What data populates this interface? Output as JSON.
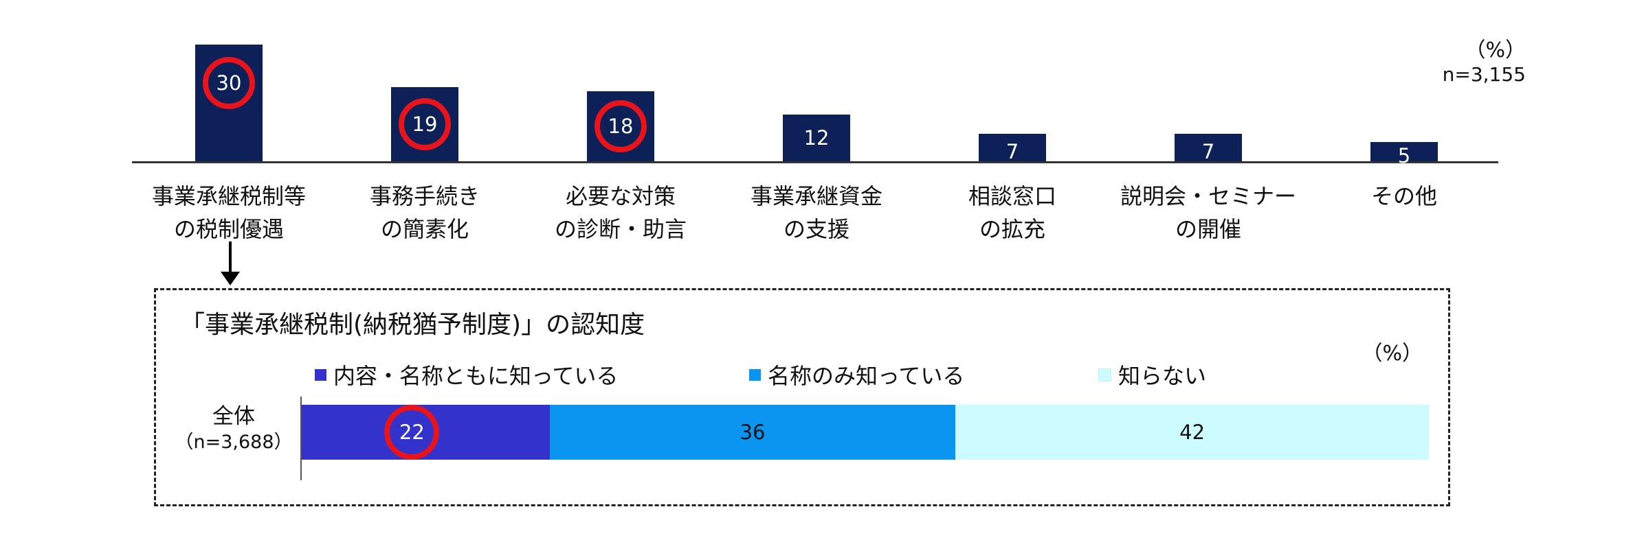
{
  "chart_data": [
    {
      "type": "bar",
      "title": "",
      "unit": "（%）",
      "n": "n=3,155",
      "categories": [
        [
          "事業承継税制等",
          "の税制優遇"
        ],
        [
          "事務手続き",
          "の簡素化"
        ],
        [
          "必要な対策",
          "の診断・助言"
        ],
        [
          "事業承継資金",
          "の支援"
        ],
        [
          "相談窓口",
          "の拡充"
        ],
        [
          "説明会・セミナー",
          "の開催"
        ],
        [
          "その他"
        ]
      ],
      "values": [
        30,
        19,
        18,
        12,
        7,
        7,
        5
      ],
      "highlighted": [
        0,
        1,
        2
      ],
      "ylim": [
        0,
        30
      ],
      "colors": {
        "bar": "#0d2158",
        "highlight_circle": "#e8141c"
      }
    },
    {
      "type": "bar",
      "orientation": "horizontal-stacked",
      "title": "「事業承継税制(納税猶予制度)」の認知度",
      "unit": "（%）",
      "categories": [
        "全体"
      ],
      "category_n": [
        "（n=3,688）"
      ],
      "series": [
        {
          "name": "内容・名称ともに知っている",
          "values": [
            22
          ],
          "color": "#3333cc"
        },
        {
          "name": "名称のみ知っている",
          "values": [
            36
          ],
          "color": "#0a96f0"
        },
        {
          "name": "知らない",
          "values": [
            42
          ],
          "color": "#ccfcff"
        }
      ],
      "highlighted_series": [
        0
      ],
      "xlim": [
        0,
        100
      ],
      "legend": "top"
    }
  ]
}
